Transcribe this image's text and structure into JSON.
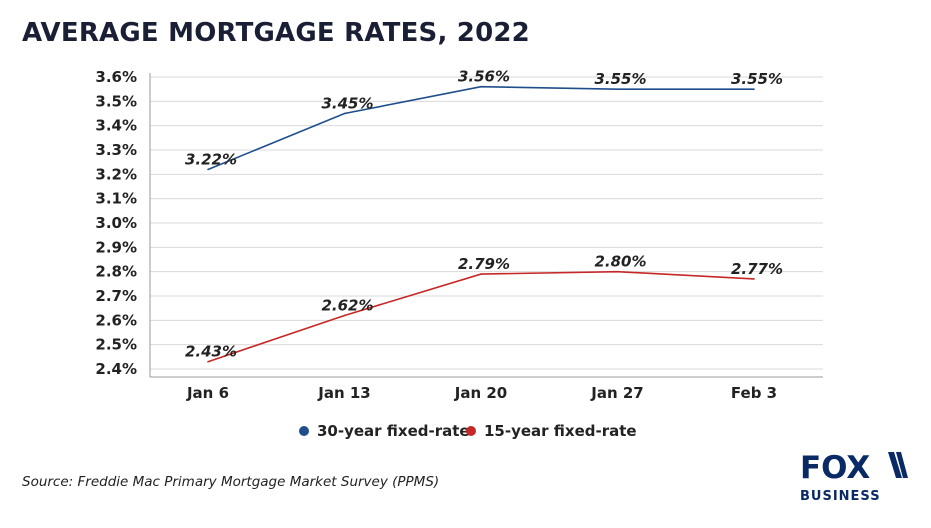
{
  "chart_data": {
    "type": "line",
    "title": "AVERAGE MORTGAGE RATES, 2022",
    "categories": [
      "Jan 6",
      "Jan 13",
      "Jan 20",
      "Jan 27",
      "Feb 3"
    ],
    "ylim": [
      2.4,
      3.6
    ],
    "yticks": [
      3.6,
      3.5,
      3.4,
      3.3,
      3.2,
      3.1,
      3.0,
      2.9,
      2.8,
      2.7,
      2.6,
      2.5,
      2.4
    ],
    "ytick_labels": [
      "3.6%",
      "3.5%",
      "3.4%",
      "3.3%",
      "3.2%",
      "3.1%",
      "3.0%",
      "2.9%",
      "2.8%",
      "2.7%",
      "2.6%",
      "2.5%",
      "2.4%"
    ],
    "grid": true,
    "xlabel": "",
    "ylabel": "",
    "legend_position": "bottom-center",
    "series": [
      {
        "name": "30-year fixed-rate",
        "color": "#1f4e8c",
        "values": [
          3.22,
          3.45,
          3.56,
          3.55,
          3.55
        ],
        "labels": [
          "3.22%",
          "3.45%",
          "3.56%",
          "3.55%",
          "3.55%"
        ]
      },
      {
        "name": "15-year fixed-rate",
        "color": "#c62828",
        "values": [
          2.43,
          2.62,
          2.79,
          2.8,
          2.77
        ],
        "labels": [
          "2.43%",
          "2.62%",
          "2.79%",
          "2.80%",
          "2.77%"
        ]
      }
    ]
  },
  "source": "Source: Freddie Mac Primary Mortgage Market Survey (PPMS)",
  "logo": {
    "top": "FOX",
    "bottom": "BUSINESS",
    "color": "#0a2a66"
  },
  "colors": {
    "title": "#1a1f36",
    "text": "#222222",
    "grid": "#d9d9d9",
    "axis": "#9a9a9a"
  }
}
